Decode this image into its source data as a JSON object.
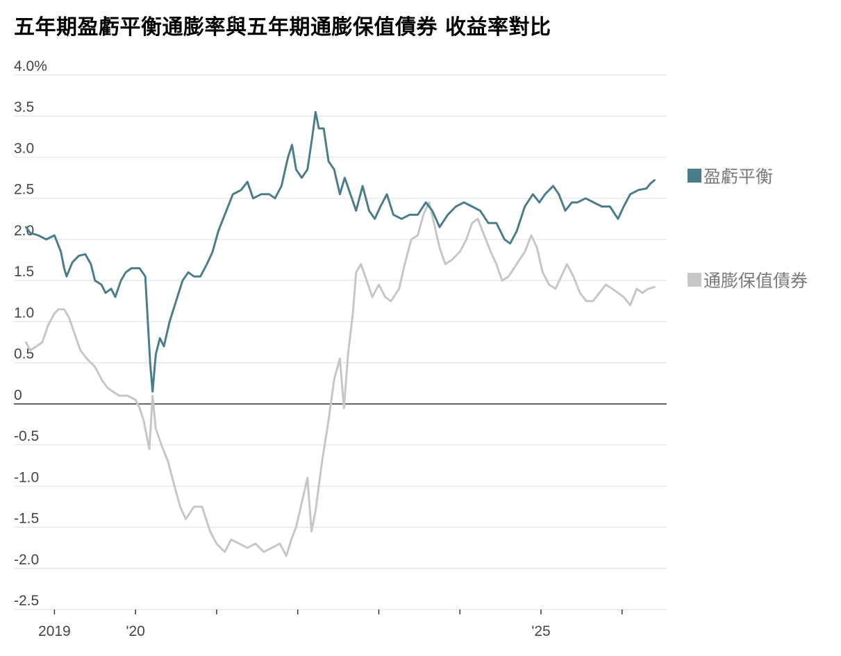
{
  "chart_data": {
    "type": "line",
    "title": "五年期盈虧平衡通膨率與五年期通膨保值債券 收益率對比",
    "xlabel": "",
    "ylabel": "",
    "ylim": [
      -2.5,
      4.0
    ],
    "xlim": [
      2018.5,
      2026.55
    ],
    "y_ticks": [
      {
        "value": 4.0,
        "label": "4.0%"
      },
      {
        "value": 3.5,
        "label": "3.5"
      },
      {
        "value": 3.0,
        "label": "3.0"
      },
      {
        "value": 2.5,
        "label": "2.5"
      },
      {
        "value": 2.0,
        "label": "2.0"
      },
      {
        "value": 1.5,
        "label": "1.5"
      },
      {
        "value": 1.0,
        "label": "1.0"
      },
      {
        "value": 0.5,
        "label": "0.5"
      },
      {
        "value": 0,
        "label": "0"
      },
      {
        "value": -0.5,
        "label": "-0.5"
      },
      {
        "value": -1.0,
        "label": "-1.0"
      },
      {
        "value": -1.5,
        "label": "-1.5"
      },
      {
        "value": -2.0,
        "label": "-2.0"
      },
      {
        "value": -2.5,
        "label": "-2.5"
      }
    ],
    "x_tick_marks": [
      2019,
      2020,
      2021,
      2022,
      2023,
      2024,
      2025,
      2026
    ],
    "x_tick_labels": [
      {
        "value": 2019,
        "label": "2019"
      },
      {
        "value": 2020,
        "label": "'20"
      },
      {
        "value": 2025,
        "label": "'25"
      }
    ],
    "grid": true,
    "legend_position": "right",
    "series": [
      {
        "name": "盈虧平衡",
        "color": "#4a7d8c",
        "points": [
          [
            2018.65,
            2.15
          ],
          [
            2018.7,
            2.08
          ],
          [
            2018.8,
            2.05
          ],
          [
            2018.9,
            2.0
          ],
          [
            2019.0,
            2.05
          ],
          [
            2019.08,
            1.85
          ],
          [
            2019.12,
            1.65
          ],
          [
            2019.15,
            1.55
          ],
          [
            2019.22,
            1.72
          ],
          [
            2019.3,
            1.8
          ],
          [
            2019.38,
            1.82
          ],
          [
            2019.45,
            1.7
          ],
          [
            2019.5,
            1.5
          ],
          [
            2019.58,
            1.45
          ],
          [
            2019.63,
            1.35
          ],
          [
            2019.7,
            1.4
          ],
          [
            2019.75,
            1.3
          ],
          [
            2019.82,
            1.5
          ],
          [
            2019.88,
            1.6
          ],
          [
            2019.95,
            1.65
          ],
          [
            2020.05,
            1.65
          ],
          [
            2020.12,
            1.55
          ],
          [
            2020.18,
            0.5
          ],
          [
            2020.21,
            0.15
          ],
          [
            2020.25,
            0.6
          ],
          [
            2020.3,
            0.8
          ],
          [
            2020.35,
            0.7
          ],
          [
            2020.42,
            1.0
          ],
          [
            2020.5,
            1.25
          ],
          [
            2020.58,
            1.5
          ],
          [
            2020.65,
            1.6
          ],
          [
            2020.72,
            1.55
          ],
          [
            2020.8,
            1.55
          ],
          [
            2020.88,
            1.7
          ],
          [
            2020.95,
            1.85
          ],
          [
            2021.02,
            2.1
          ],
          [
            2021.1,
            2.3
          ],
          [
            2021.2,
            2.55
          ],
          [
            2021.3,
            2.6
          ],
          [
            2021.38,
            2.7
          ],
          [
            2021.45,
            2.5
          ],
          [
            2021.55,
            2.55
          ],
          [
            2021.65,
            2.55
          ],
          [
            2021.72,
            2.5
          ],
          [
            2021.8,
            2.65
          ],
          [
            2021.88,
            3.0
          ],
          [
            2021.93,
            3.15
          ],
          [
            2021.98,
            2.85
          ],
          [
            2022.05,
            2.75
          ],
          [
            2022.12,
            2.85
          ],
          [
            2022.18,
            3.25
          ],
          [
            2022.22,
            3.55
          ],
          [
            2022.26,
            3.35
          ],
          [
            2022.32,
            3.35
          ],
          [
            2022.38,
            2.95
          ],
          [
            2022.45,
            2.85
          ],
          [
            2022.52,
            2.55
          ],
          [
            2022.58,
            2.75
          ],
          [
            2022.65,
            2.55
          ],
          [
            2022.72,
            2.35
          ],
          [
            2022.8,
            2.65
          ],
          [
            2022.88,
            2.35
          ],
          [
            2022.95,
            2.25
          ],
          [
            2023.02,
            2.4
          ],
          [
            2023.1,
            2.55
          ],
          [
            2023.18,
            2.3
          ],
          [
            2023.28,
            2.25
          ],
          [
            2023.38,
            2.3
          ],
          [
            2023.48,
            2.3
          ],
          [
            2023.58,
            2.45
          ],
          [
            2023.66,
            2.35
          ],
          [
            2023.75,
            2.15
          ],
          [
            2023.85,
            2.3
          ],
          [
            2023.95,
            2.4
          ],
          [
            2024.05,
            2.45
          ],
          [
            2024.15,
            2.4
          ],
          [
            2024.25,
            2.35
          ],
          [
            2024.35,
            2.2
          ],
          [
            2024.45,
            2.2
          ],
          [
            2024.55,
            2.0
          ],
          [
            2024.62,
            1.95
          ],
          [
            2024.7,
            2.1
          ],
          [
            2024.8,
            2.4
          ],
          [
            2024.9,
            2.55
          ],
          [
            2024.98,
            2.45
          ],
          [
            2025.05,
            2.55
          ],
          [
            2025.15,
            2.65
          ],
          [
            2025.22,
            2.55
          ],
          [
            2025.3,
            2.35
          ],
          [
            2025.38,
            2.45
          ],
          [
            2025.45,
            2.45
          ],
          [
            2025.55,
            2.5
          ],
          [
            2025.65,
            2.45
          ],
          [
            2025.75,
            2.4
          ],
          [
            2025.85,
            2.4
          ],
          [
            2025.95,
            2.25
          ],
          [
            2026.02,
            2.4
          ],
          [
            2026.1,
            2.55
          ],
          [
            2026.2,
            2.6
          ],
          [
            2026.3,
            2.62
          ],
          [
            2026.35,
            2.68
          ],
          [
            2026.4,
            2.72
          ]
        ]
      },
      {
        "name": "通膨保值債券",
        "color": "#c6c6c6",
        "points": [
          [
            2018.65,
            0.75
          ],
          [
            2018.7,
            0.65
          ],
          [
            2018.78,
            0.7
          ],
          [
            2018.85,
            0.75
          ],
          [
            2018.92,
            0.95
          ],
          [
            2019.0,
            1.1
          ],
          [
            2019.05,
            1.15
          ],
          [
            2019.12,
            1.15
          ],
          [
            2019.18,
            1.05
          ],
          [
            2019.25,
            0.85
          ],
          [
            2019.32,
            0.65
          ],
          [
            2019.4,
            0.55
          ],
          [
            2019.5,
            0.45
          ],
          [
            2019.58,
            0.3
          ],
          [
            2019.65,
            0.2
          ],
          [
            2019.72,
            0.15
          ],
          [
            2019.8,
            0.1
          ],
          [
            2019.9,
            0.1
          ],
          [
            2020.0,
            0.05
          ],
          [
            2020.05,
            -0.05
          ],
          [
            2020.1,
            -0.2
          ],
          [
            2020.17,
            -0.55
          ],
          [
            2020.21,
            0.1
          ],
          [
            2020.25,
            -0.3
          ],
          [
            2020.32,
            -0.5
          ],
          [
            2020.4,
            -0.7
          ],
          [
            2020.48,
            -1.0
          ],
          [
            2020.55,
            -1.25
          ],
          [
            2020.62,
            -1.4
          ],
          [
            2020.72,
            -1.25
          ],
          [
            2020.82,
            -1.25
          ],
          [
            2020.92,
            -1.55
          ],
          [
            2021.0,
            -1.7
          ],
          [
            2021.1,
            -1.8
          ],
          [
            2021.18,
            -1.65
          ],
          [
            2021.28,
            -1.7
          ],
          [
            2021.38,
            -1.75
          ],
          [
            2021.48,
            -1.7
          ],
          [
            2021.58,
            -1.8
          ],
          [
            2021.68,
            -1.75
          ],
          [
            2021.78,
            -1.7
          ],
          [
            2021.86,
            -1.85
          ],
          [
            2021.92,
            -1.65
          ],
          [
            2021.98,
            -1.5
          ],
          [
            2022.05,
            -1.2
          ],
          [
            2022.12,
            -0.9
          ],
          [
            2022.17,
            -1.55
          ],
          [
            2022.22,
            -1.3
          ],
          [
            2022.3,
            -0.7
          ],
          [
            2022.38,
            -0.2
          ],
          [
            2022.45,
            0.3
          ],
          [
            2022.52,
            0.55
          ],
          [
            2022.57,
            -0.05
          ],
          [
            2022.62,
            0.6
          ],
          [
            2022.68,
            1.1
          ],
          [
            2022.72,
            1.6
          ],
          [
            2022.78,
            1.7
          ],
          [
            2022.85,
            1.5
          ],
          [
            2022.92,
            1.3
          ],
          [
            2023.0,
            1.45
          ],
          [
            2023.08,
            1.3
          ],
          [
            2023.15,
            1.25
          ],
          [
            2023.25,
            1.4
          ],
          [
            2023.32,
            1.7
          ],
          [
            2023.4,
            2.0
          ],
          [
            2023.48,
            2.05
          ],
          [
            2023.55,
            2.3
          ],
          [
            2023.62,
            2.45
          ],
          [
            2023.68,
            2.2
          ],
          [
            2023.75,
            1.9
          ],
          [
            2023.82,
            1.7
          ],
          [
            2023.9,
            1.75
          ],
          [
            2024.0,
            1.85
          ],
          [
            2024.08,
            2.0
          ],
          [
            2024.15,
            2.2
          ],
          [
            2024.22,
            2.25
          ],
          [
            2024.3,
            2.05
          ],
          [
            2024.38,
            1.85
          ],
          [
            2024.45,
            1.7
          ],
          [
            2024.52,
            1.5
          ],
          [
            2024.6,
            1.55
          ],
          [
            2024.7,
            1.7
          ],
          [
            2024.8,
            1.85
          ],
          [
            2024.88,
            2.05
          ],
          [
            2024.95,
            1.9
          ],
          [
            2025.02,
            1.6
          ],
          [
            2025.1,
            1.45
          ],
          [
            2025.18,
            1.4
          ],
          [
            2025.25,
            1.55
          ],
          [
            2025.32,
            1.7
          ],
          [
            2025.4,
            1.55
          ],
          [
            2025.48,
            1.35
          ],
          [
            2025.56,
            1.25
          ],
          [
            2025.64,
            1.25
          ],
          [
            2025.72,
            1.35
          ],
          [
            2025.8,
            1.45
          ],
          [
            2025.88,
            1.4
          ],
          [
            2025.95,
            1.35
          ],
          [
            2026.02,
            1.3
          ],
          [
            2026.1,
            1.2
          ],
          [
            2026.18,
            1.4
          ],
          [
            2026.25,
            1.35
          ],
          [
            2026.32,
            1.4
          ],
          [
            2026.4,
            1.42
          ]
        ]
      }
    ]
  }
}
